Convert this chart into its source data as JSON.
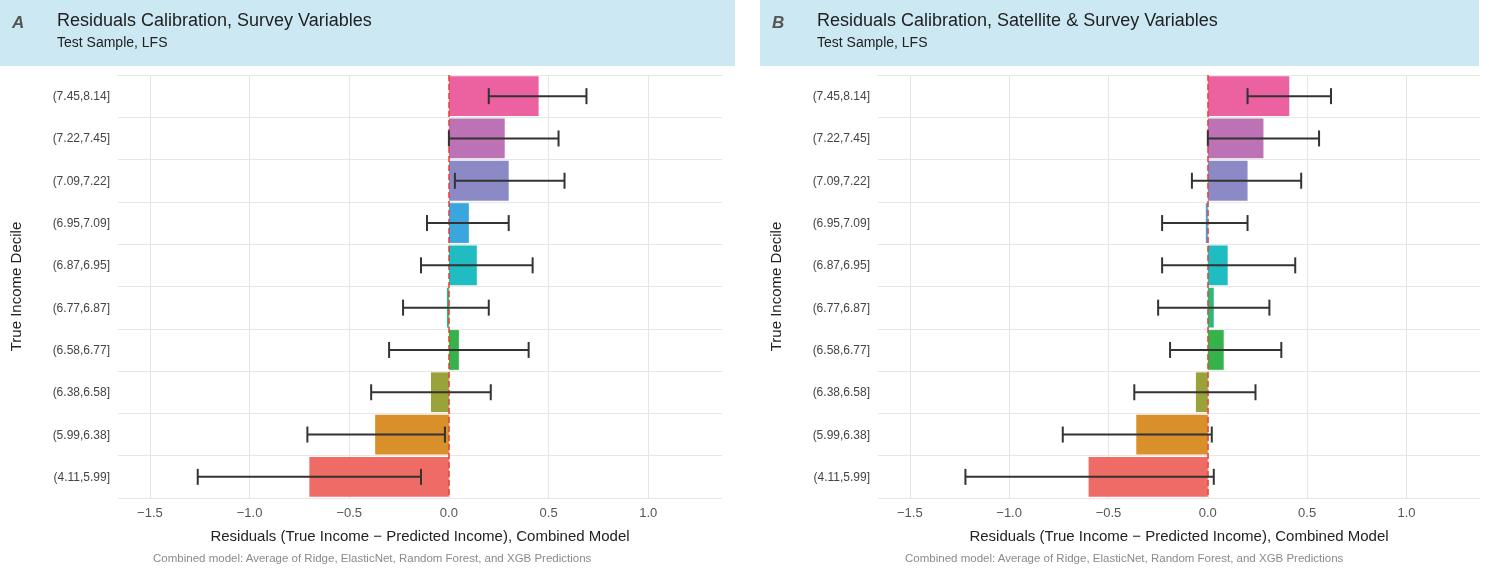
{
  "chart_data": [
    {
      "type": "bar",
      "orientation": "horizontal",
      "title": "Residuals Calibration, Survey Variables",
      "subtitle": "Test Sample, LFS",
      "xlabel": "Residuals (True Income − Predicted Income), Combined Model",
      "ylabel": "True Income Decile",
      "annotations": [
        "A",
        "Combined model: Average of Ridge, ElasticNet, Random Forest, and XGB Predictions"
      ],
      "categories": [
        "(7.45,8.14]",
        "(7.22,7.45]",
        "(7.09,7.22]",
        "(6.95,7.09]",
        "(6.87,6.95]",
        "(6.77,6.87]",
        "(6.58,6.77]",
        "(6.38,6.58]",
        "(5.99,6.38]",
        "(4.11,5.99]"
      ],
      "values": [
        0.45,
        0.28,
        0.3,
        0.1,
        0.14,
        -0.01,
        0.05,
        -0.09,
        -0.37,
        -0.7
      ],
      "errors": [
        [
          0.2,
          0.69
        ],
        [
          0.0,
          0.55
        ],
        [
          0.03,
          0.58
        ],
        [
          -0.11,
          0.3
        ],
        [
          -0.14,
          0.42
        ],
        [
          -0.23,
          0.2
        ],
        [
          -0.3,
          0.4
        ],
        [
          -0.39,
          0.21
        ],
        [
          -0.71,
          -0.02
        ],
        [
          -1.26,
          -0.14
        ]
      ],
      "colors": [
        "#ec619f",
        "#bc72b4",
        "#8c8ac6",
        "#3aa6dd",
        "#1fbcc1",
        "#2fb87a",
        "#36b24a",
        "#9aa33a",
        "#d98f2a",
        "#ef6b66"
      ],
      "xlim": [
        -1.66,
        1.37
      ],
      "xticks": [
        {
          "value": -1.5,
          "label": "−1.5"
        },
        {
          "value": -1,
          "label": "−1.0"
        },
        {
          "value": -0.5,
          "label": "−0.5"
        },
        {
          "value": 0,
          "label": "0.0"
        },
        {
          "value": 0.5,
          "label": "0.5"
        },
        {
          "value": 1,
          "label": "1.0"
        }
      ],
      "grid": true,
      "ref_lines": [
        {
          "axis": "x",
          "value": 0,
          "color": "#e8402e",
          "line_style": "dashed"
        }
      ]
    },
    {
      "type": "bar",
      "orientation": "horizontal",
      "title": "Residuals Calibration, Satellite & Survey Variables",
      "subtitle": "Test Sample, LFS",
      "xlabel": "Residuals (True Income − Predicted Income), Combined Model",
      "ylabel": "True Income Decile",
      "annotations": [
        "B",
        "Combined model: Average of Ridge, ElasticNet, Random Forest, and XGB Predictions"
      ],
      "categories": [
        "(7.45,8.14]",
        "(7.22,7.45]",
        "(7.09,7.22]",
        "(6.95,7.09]",
        "(6.87,6.95]",
        "(6.77,6.87]",
        "(6.58,6.77]",
        "(6.38,6.58]",
        "(5.99,6.38]",
        "(4.11,5.99]"
      ],
      "values": [
        0.41,
        0.28,
        0.2,
        -0.01,
        0.1,
        0.03,
        0.08,
        -0.06,
        -0.36,
        -0.6
      ],
      "errors": [
        [
          0.2,
          0.62
        ],
        [
          0.0,
          0.56
        ],
        [
          -0.08,
          0.47
        ],
        [
          -0.23,
          0.2
        ],
        [
          -0.23,
          0.44
        ],
        [
          -0.25,
          0.31
        ],
        [
          -0.19,
          0.37
        ],
        [
          -0.37,
          0.24
        ],
        [
          -0.73,
          0.02
        ],
        [
          -1.22,
          0.03
        ]
      ],
      "colors": [
        "#ec619f",
        "#bc72b4",
        "#8c8ac6",
        "#3aa6dd",
        "#1fbcc1",
        "#2fb87a",
        "#36b24a",
        "#9aa33a",
        "#d98f2a",
        "#ef6b66"
      ],
      "xlim": [
        -1.66,
        1.37
      ],
      "xticks": [
        {
          "value": -1.5,
          "label": "−1.5"
        },
        {
          "value": -1,
          "label": "−1.0"
        },
        {
          "value": -0.5,
          "label": "−0.5"
        },
        {
          "value": 0,
          "label": "0.0"
        },
        {
          "value": 0.5,
          "label": "0.5"
        },
        {
          "value": 1,
          "label": "1.0"
        }
      ],
      "grid": true,
      "ref_lines": [
        {
          "axis": "x",
          "value": 0,
          "color": "#e8402e",
          "line_style": "dashed"
        }
      ]
    }
  ]
}
